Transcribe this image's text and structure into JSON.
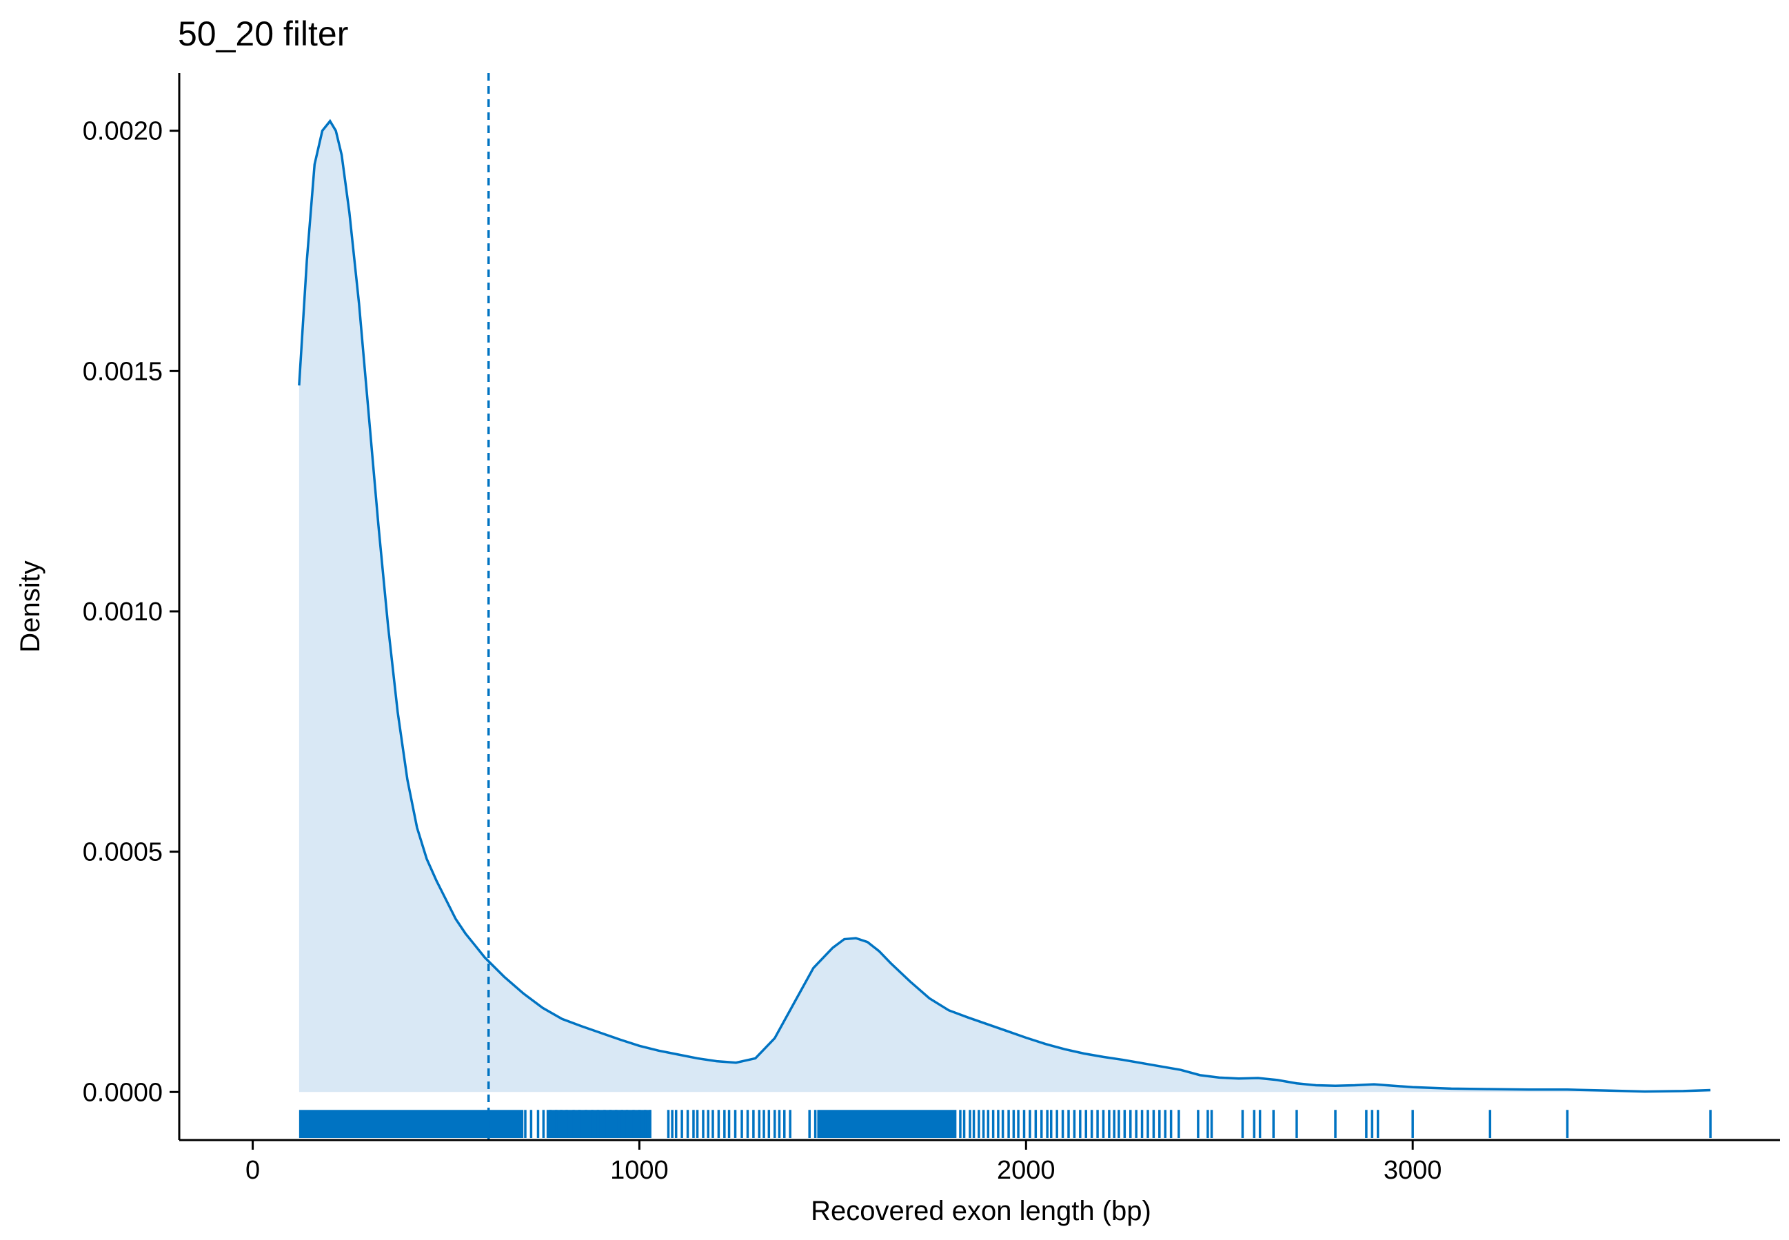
{
  "chart_data": {
    "type": "area",
    "title": "50_20 filter",
    "xlabel": "Recovered exon length (bp)",
    "ylabel": "Density",
    "xlim": [
      -190,
      3950
    ],
    "ylim": [
      -0.0001,
      0.00212
    ],
    "x_ticks": [
      0,
      1000,
      2000,
      3000
    ],
    "x_tick_labels": [
      "0",
      "1000",
      "2000",
      "3000"
    ],
    "y_ticks": [
      0,
      0.0005,
      0.001,
      0.0015,
      0.002
    ],
    "y_tick_labels": [
      "0.0000",
      "0.0005",
      "0.0010",
      "0.0015",
      "0.0020"
    ],
    "grid": false,
    "legend": "none",
    "colors": {
      "line": "#0073C2",
      "fill": "#D9E8F5",
      "rug": "#0073C2",
      "vline": "#0073C2"
    },
    "vline_x": 610,
    "series": [
      {
        "x": [
          120,
          140,
          160,
          180,
          200,
          215,
          230,
          250,
          275,
          300,
          325,
          350,
          375,
          400,
          425,
          450,
          475,
          500,
          525,
          550,
          575,
          600,
          650,
          700,
          750,
          800,
          850,
          900,
          950,
          1000,
          1050,
          1100,
          1150,
          1200,
          1250,
          1300,
          1350,
          1400,
          1450,
          1500,
          1530,
          1560,
          1590,
          1620,
          1650,
          1700,
          1750,
          1800,
          1850,
          1900,
          1950,
          2000,
          2050,
          2100,
          2150,
          2200,
          2250,
          2300,
          2350,
          2400,
          2450,
          2500,
          2550,
          2600,
          2650,
          2700,
          2750,
          2800,
          2850,
          2900,
          2950,
          3000,
          3100,
          3200,
          3300,
          3400,
          3500,
          3600,
          3700,
          3770
        ],
        "y": [
          0.00147,
          0.00173,
          0.00193,
          0.002,
          0.00202,
          0.002,
          0.00195,
          0.00183,
          0.00164,
          0.00141,
          0.00118,
          0.00097,
          0.00079,
          0.00065,
          0.00055,
          0.000485,
          0.00044,
          0.0004,
          0.00036,
          0.00033,
          0.000305,
          0.00028,
          0.00024,
          0.000205,
          0.000175,
          0.000152,
          0.000137,
          0.000123,
          0.000109,
          9.6e-05,
          8.6e-05,
          7.8e-05,
          7e-05,
          6.4e-05,
          6.1e-05,
          7e-05,
          0.000112,
          0.000185,
          0.000258,
          0.0003,
          0.000318,
          0.00032,
          0.000312,
          0.000293,
          0.000268,
          0.00023,
          0.000195,
          0.00017,
          0.000155,
          0.000141,
          0.000127,
          0.000113,
          0.0001,
          8.9e-05,
          8e-05,
          7.3e-05,
          6.7e-05,
          6e-05,
          5.3e-05,
          4.6e-05,
          3.5e-05,
          3e-05,
          2.8e-05,
          2.9e-05,
          2.5e-05,
          1.8e-05,
          1.4e-05,
          1.3e-05,
          1.4e-05,
          1.6e-05,
          1.3e-05,
          1e-05,
          7e-06,
          6e-06,
          5e-06,
          5e-06,
          3e-06,
          1e-06,
          2e-06,
          4e-06
        ]
      }
    ],
    "rug": {
      "dense_ranges": [
        [
          120,
          700
        ],
        [
          760,
          1030
        ],
        [
          1460,
          1820
        ]
      ],
      "ticks": [
        705,
        720,
        738,
        752,
        770,
        785,
        798,
        812,
        830,
        845,
        862,
        878,
        893,
        910,
        925,
        940,
        955,
        968,
        985,
        1000,
        1015,
        1028,
        1075,
        1085,
        1095,
        1110,
        1125,
        1140,
        1150,
        1165,
        1178,
        1190,
        1205,
        1220,
        1232,
        1248,
        1265,
        1280,
        1295,
        1310,
        1322,
        1335,
        1350,
        1362,
        1375,
        1390,
        1440,
        1455,
        1830,
        1840,
        1855,
        1865,
        1878,
        1890,
        1902,
        1915,
        1928,
        1940,
        1955,
        1968,
        1980,
        1995,
        2010,
        2025,
        2040,
        2055,
        2065,
        2080,
        2095,
        2110,
        2125,
        2140,
        2155,
        2170,
        2185,
        2200,
        2215,
        2228,
        2240,
        2255,
        2270,
        2285,
        2300,
        2315,
        2330,
        2345,
        2360,
        2375,
        2395,
        2445,
        2470,
        2480,
        2560,
        2590,
        2605,
        2640,
        2700,
        2800,
        2880,
        2895,
        2910,
        3000,
        3200,
        3400,
        3770
      ]
    }
  }
}
